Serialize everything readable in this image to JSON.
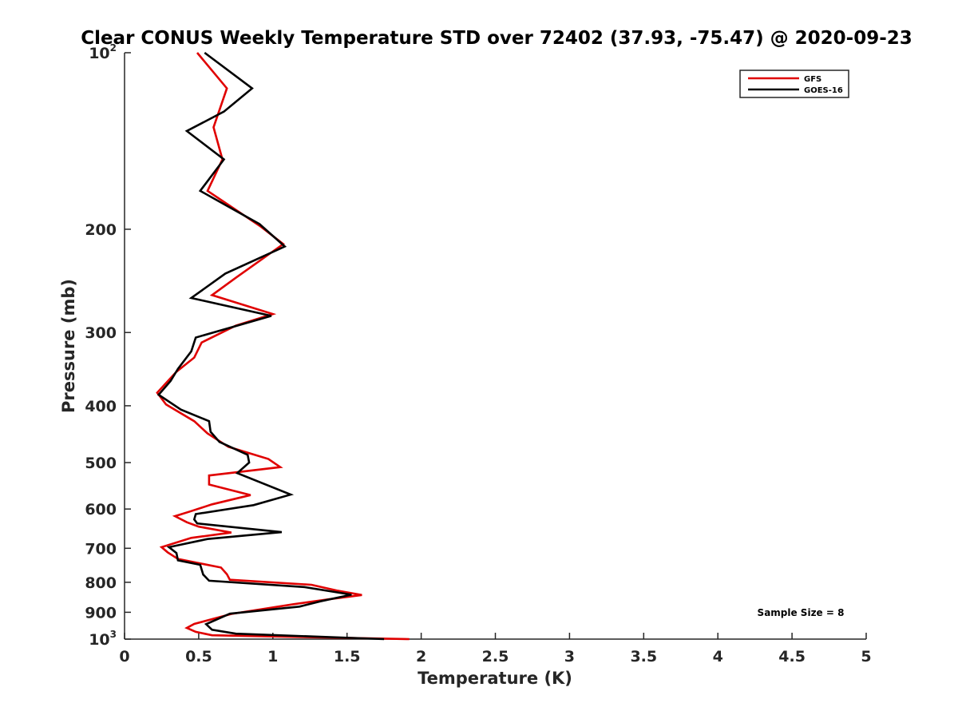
{
  "chart_data": {
    "type": "line",
    "title": "Clear CONUS Weekly Temperature STD over 72402 (37.93, -75.47) @ 2020-09-23",
    "xlabel": "Temperature (K)",
    "ylabel": "Pressure (mb)",
    "xlim": [
      0,
      5
    ],
    "ylim": [
      100,
      1000
    ],
    "y_scale": "log",
    "y_reversed": true,
    "x_ticks": [
      "0",
      "0.5",
      "1",
      "1.5",
      "2",
      "2.5",
      "3",
      "3.5",
      "4",
      "4.5",
      "5"
    ],
    "x_tick_values": [
      0,
      0.5,
      1,
      1.5,
      2,
      2.5,
      3,
      3.5,
      4,
      4.5,
      5
    ],
    "y_ticks": [
      {
        "value": 100,
        "base": "10",
        "exp": "2"
      },
      {
        "value": 200,
        "label": "200"
      },
      {
        "value": 300,
        "label": "300"
      },
      {
        "value": 400,
        "label": "400"
      },
      {
        "value": 500,
        "label": "500"
      },
      {
        "value": 600,
        "label": "600"
      },
      {
        "value": 700,
        "label": "700"
      },
      {
        "value": 800,
        "label": "800"
      },
      {
        "value": 900,
        "label": "900"
      },
      {
        "value": 1000,
        "base": "10",
        "exp": "3"
      }
    ],
    "grid": false,
    "legend_position": "top-right",
    "annotation": "Sample Size = 8",
    "series": [
      {
        "name": "GFS",
        "color": "#e00000",
        "points": [
          [
            0.49,
            100
          ],
          [
            0.69,
            115
          ],
          [
            0.6,
            134
          ],
          [
            0.66,
            152
          ],
          [
            0.56,
            172
          ],
          [
            0.92,
            198
          ],
          [
            1.07,
            212
          ],
          [
            0.75,
            242
          ],
          [
            0.59,
            259
          ],
          [
            1.0,
            279
          ],
          [
            0.75,
            292
          ],
          [
            0.52,
            312
          ],
          [
            0.47,
            331
          ],
          [
            0.35,
            350
          ],
          [
            0.22,
            380
          ],
          [
            0.28,
            398
          ],
          [
            0.47,
            425
          ],
          [
            0.56,
            446
          ],
          [
            0.7,
            470
          ],
          [
            0.97,
            493
          ],
          [
            1.05,
            509
          ],
          [
            0.57,
            526
          ],
          [
            0.57,
            545
          ],
          [
            0.85,
            568
          ],
          [
            0.59,
            589
          ],
          [
            0.44,
            606
          ],
          [
            0.34,
            617
          ],
          [
            0.42,
            632
          ],
          [
            0.5,
            643
          ],
          [
            0.72,
            658
          ],
          [
            0.45,
            672
          ],
          [
            0.25,
            697
          ],
          [
            0.29,
            711
          ],
          [
            0.36,
            730
          ],
          [
            0.65,
            755
          ],
          [
            0.69,
            775
          ],
          [
            0.71,
            792
          ],
          [
            1.26,
            808
          ],
          [
            1.43,
            826
          ],
          [
            1.6,
            841
          ],
          [
            1.38,
            855
          ],
          [
            1.14,
            872
          ],
          [
            0.72,
            906
          ],
          [
            0.47,
            942
          ],
          [
            0.42,
            957
          ],
          [
            0.48,
            972
          ],
          [
            0.59,
            985
          ],
          [
            1.92,
            1000
          ]
        ]
      },
      {
        "name": "GOES-16",
        "color": "#000000",
        "points": [
          [
            0.54,
            100
          ],
          [
            0.86,
            115
          ],
          [
            0.67,
            126
          ],
          [
            0.42,
            136
          ],
          [
            0.67,
            152
          ],
          [
            0.51,
            172
          ],
          [
            0.91,
            196
          ],
          [
            1.08,
            214
          ],
          [
            0.68,
            238
          ],
          [
            0.45,
            262
          ],
          [
            0.99,
            281
          ],
          [
            0.48,
            306
          ],
          [
            0.45,
            323
          ],
          [
            0.36,
            346
          ],
          [
            0.31,
            363
          ],
          [
            0.23,
            383
          ],
          [
            0.38,
            406
          ],
          [
            0.57,
            425
          ],
          [
            0.58,
            443
          ],
          [
            0.64,
            461
          ],
          [
            0.83,
            485
          ],
          [
            0.84,
            500
          ],
          [
            0.76,
            521
          ],
          [
            1.12,
            567
          ],
          [
            0.87,
            591
          ],
          [
            0.48,
            612
          ],
          [
            0.47,
            625
          ],
          [
            0.49,
            635
          ],
          [
            1.06,
            657
          ],
          [
            0.56,
            675
          ],
          [
            0.3,
            697
          ],
          [
            0.35,
            713
          ],
          [
            0.36,
            734
          ],
          [
            0.51,
            747
          ],
          [
            0.53,
            776
          ],
          [
            0.57,
            795
          ],
          [
            1.21,
            815
          ],
          [
            1.53,
            840
          ],
          [
            1.32,
            862
          ],
          [
            1.18,
            880
          ],
          [
            0.71,
            905
          ],
          [
            0.55,
            943
          ],
          [
            0.59,
            964
          ],
          [
            0.75,
            979
          ],
          [
            1.75,
            1000
          ]
        ]
      }
    ]
  }
}
